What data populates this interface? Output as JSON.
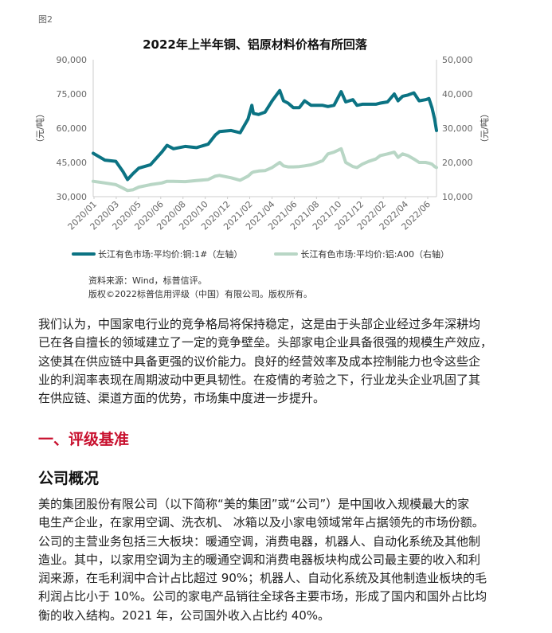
{
  "figure_label": "图2",
  "chart_data": {
    "type": "line",
    "title": "2022年上半年铜、铝原材料价格有所回落",
    "ylabel_left": "（元/吨）",
    "ylabel_right": "（元/吨）",
    "ylim_left": [
      30000,
      90000
    ],
    "ylim_right": [
      10000,
      50000
    ],
    "yticks_left": [
      "90,000",
      "75,000",
      "60,000",
      "45,000",
      "30,000"
    ],
    "yticks_right": [
      "50,000",
      "40,000",
      "30,000",
      "20,000",
      "10,000"
    ],
    "xticks": [
      "2020/01",
      "2020/03",
      "2020/05",
      "2020/06",
      "2020/08",
      "2020/10",
      "2020/12",
      "2021/02",
      "2021/04",
      "2021/06",
      "2021/08",
      "2021/10",
      "2021/12",
      "2022/02",
      "2022/04",
      "2022/06"
    ],
    "grid": false,
    "legend_position": "bottom",
    "x": [
      "2020-01-01",
      "2020-02-01",
      "2020-03-01",
      "2020-03-20",
      "2020-04-01",
      "2020-04-15",
      "2020-05-01",
      "2020-06-01",
      "2020-07-01",
      "2020-07-15",
      "2020-08-01",
      "2020-09-01",
      "2020-10-01",
      "2020-11-01",
      "2020-11-20",
      "2020-12-01",
      "2021-01-01",
      "2021-01-25",
      "2021-02-15",
      "2021-02-25",
      "2021-03-01",
      "2021-03-15",
      "2021-04-01",
      "2021-04-20",
      "2021-05-10",
      "2021-05-20",
      "2021-06-01",
      "2021-06-15",
      "2021-07-01",
      "2021-07-15",
      "2021-08-01",
      "2021-08-15",
      "2021-09-01",
      "2021-09-15",
      "2021-10-01",
      "2021-10-20",
      "2021-11-01",
      "2021-11-20",
      "2021-12-01",
      "2021-12-15",
      "2022-01-01",
      "2022-01-20",
      "2022-02-01",
      "2022-02-20",
      "2022-03-10",
      "2022-03-20",
      "2022-04-01",
      "2022-04-15",
      "2022-05-01",
      "2022-05-15",
      "2022-06-01",
      "2022-06-10",
      "2022-06-18",
      "2022-06-25",
      "2022-06-30"
    ],
    "series": [
      {
        "name": "长江有色市场:平均价:铜:1#（左轴）",
        "axis": "left",
        "color": "#0b7383",
        "values": [
          49000,
          46000,
          45500,
          41000,
          37500,
          40000,
          42500,
          44000,
          49500,
          52500,
          51000,
          52000,
          51500,
          53000,
          57000,
          58500,
          59000,
          58000,
          64000,
          70000,
          66500,
          66000,
          67000,
          72000,
          76500,
          72000,
          71000,
          69000,
          69000,
          72000,
          70000,
          70000,
          70000,
          69500,
          70000,
          76000,
          71500,
          72500,
          70000,
          70500,
          70500,
          70500,
          71000,
          71500,
          75000,
          72000,
          74000,
          74500,
          75500,
          72000,
          72500,
          73000,
          69000,
          64000,
          59000
        ]
      },
      {
        "name": "长江有色市场:平均价:铝:A00（右轴）",
        "axis": "right",
        "color": "#b8d6c5",
        "values": [
          14500,
          14000,
          13500,
          12500,
          11800,
          12000,
          12800,
          13500,
          14000,
          14500,
          14500,
          14400,
          14700,
          15000,
          16000,
          16200,
          15500,
          14800,
          16000,
          17000,
          17200,
          17500,
          17600,
          18500,
          20000,
          19000,
          18700,
          18700,
          18800,
          19000,
          19300,
          19800,
          20500,
          22500,
          23000,
          24000,
          20000,
          18800,
          18500,
          19500,
          20300,
          21000,
          22000,
          22500,
          23000,
          21500,
          22500,
          22000,
          21000,
          20000,
          20000,
          19800,
          19500,
          18800,
          18500
        ]
      }
    ]
  },
  "source": {
    "line1": "资料来源：Wind，标普信评。",
    "line2": "版权©2022标普信用评级（中国）有限公司。版权所有。"
  },
  "paragraph1": [
    "我们认为，中国家电行业的竞争格局将保持稳定，这是由于头部企业经过多年深耕均",
    "已在各自擅长的领域建立了一定的竞争壁垒。头部家电企业具备很强的规模生产效应，",
    "这使其在供应链中具备更强的议价能力。良好的经营效率及成本控制能力也令这些企",
    "业的利润率表现在周期波动中更具韧性。在疫情的考验之下，行业龙头企业巩固了其",
    "在供应链、渠道方面的优势，市场集中度进一步提升。"
  ],
  "heading_section": "一、评级基准",
  "heading_sub": "公司概况",
  "paragraph2": [
    "美的集团股份有限公司（以下简称“美的集团”或“公司”）是中国收入规模最大的家",
    "电生产企业，在家用空调、洗衣机、 冰箱以及小家电领域常年占据领先的市场份额。",
    "公司的主营业务包括三大板块：暖通空调，消费电器，机器人、自动化系统及其他制",
    "造业。其中，以家用空调为主的暖通空调和消费电器板块构成公司最主要的收入和利",
    "润来源，在毛利润中合计占比超过 90%；机器人、自动化系统及其他制造业板块的毛",
    "利润占比小于 10%。公司的家电产品销往全球各主要市场，形成了国内和国外占比均",
    "衡的收入结构。2021 年，公司国外收入占比约 40%。"
  ],
  "colors": {
    "heading_accent": "#c8102e",
    "copper": "#0b7383",
    "aluminum": "#b8d6c5"
  }
}
